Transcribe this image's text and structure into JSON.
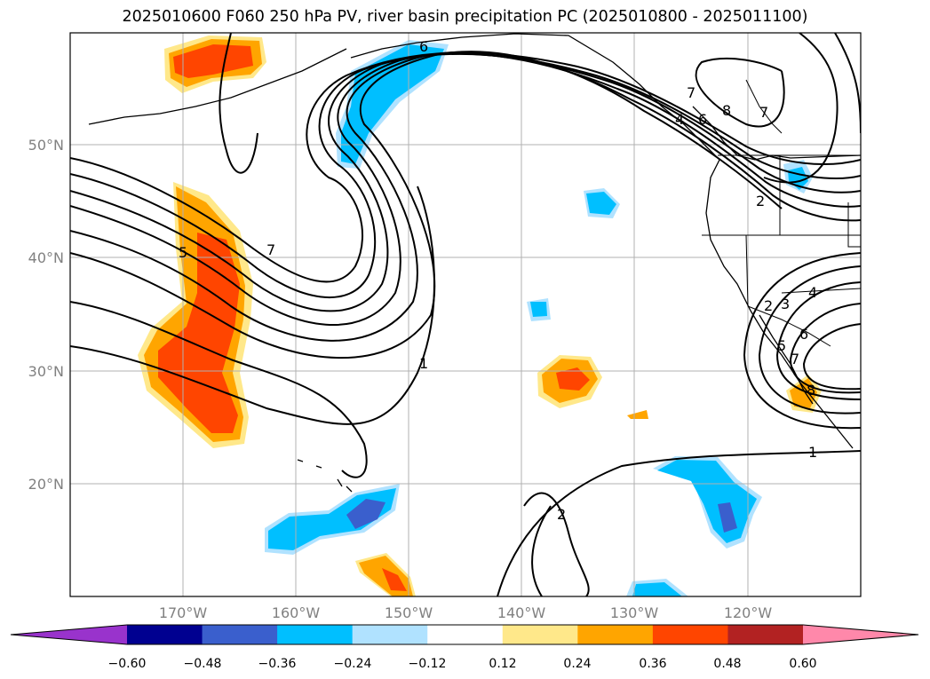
{
  "title": "2025010600 F060 250 hPa PV, river basin precipitation PC (2025010800 - 2025011100)",
  "map": {
    "latitude_labels": [
      "20°N",
      "30°N",
      "40°N",
      "50°N"
    ],
    "longitude_labels": [
      "170°W",
      "160°W",
      "150°W",
      "140°W",
      "130°W",
      "120°W"
    ],
    "pv_contour_labels": [
      "6",
      "7",
      "8",
      "7",
      "6",
      "4",
      "2",
      "5",
      "7",
      "1",
      "1",
      "2",
      "2",
      "3",
      "4",
      "5",
      "6",
      "7",
      "8"
    ]
  },
  "colorbar": {
    "tick_labels": [
      "−0.60",
      "−0.48",
      "−0.36",
      "−0.24",
      "−0.12",
      "0.12",
      "0.24",
      "0.36",
      "0.48",
      "0.60"
    ],
    "colors": [
      "#9933cc",
      "#000090",
      "#3a5fcd",
      "#00bfff",
      "#b0e2ff",
      "#ffffff",
      "#ffe88a",
      "#ffa500",
      "#ff4500",
      "#b22222",
      "#ff88aa"
    ]
  }
}
